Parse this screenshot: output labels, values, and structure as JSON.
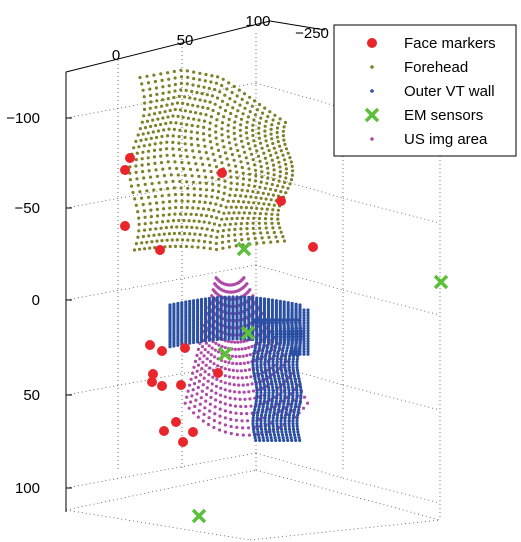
{
  "chart_data": {
    "type": "scatter",
    "title": "",
    "view": "3d",
    "grid": true,
    "legend_position": "top-right",
    "z_ticks": [
      "−100",
      "−50",
      "0",
      "50",
      "100"
    ],
    "top_ticks": [
      "0",
      "50",
      "100"
    ],
    "depth_ticks": [
      "−250"
    ],
    "series": [
      {
        "name": "Face markers",
        "marker": "circle",
        "color": "#e8262b",
        "points": [
          [
            130,
            158
          ],
          [
            125,
            170
          ],
          [
            125,
            226
          ],
          [
            160,
            250
          ],
          [
            222,
            173
          ],
          [
            281,
            201
          ],
          [
            313,
            247
          ],
          [
            150,
            345
          ],
          [
            162,
            351
          ],
          [
            185,
            348
          ],
          [
            153,
            374
          ],
          [
            152,
            382
          ],
          [
            162,
            386
          ],
          [
            181,
            385
          ],
          [
            218,
            373
          ],
          [
            176,
            422
          ],
          [
            164,
            431
          ],
          [
            193,
            432
          ],
          [
            183,
            442
          ]
        ]
      },
      {
        "name": "Forehead",
        "marker": "dot",
        "color": "#808028"
      },
      {
        "name": "Outer VT wall",
        "marker": "dot",
        "color": "#2a4fa3"
      },
      {
        "name": "EM sensors",
        "marker": "cross",
        "color": "#5bbf3c",
        "points": [
          [
            244,
            249
          ],
          [
            441,
            282
          ],
          [
            248,
            333
          ],
          [
            225,
            354
          ],
          [
            199,
            516
          ]
        ]
      },
      {
        "name": "US img area",
        "marker": "dot",
        "color": "#b04aa8"
      }
    ]
  }
}
